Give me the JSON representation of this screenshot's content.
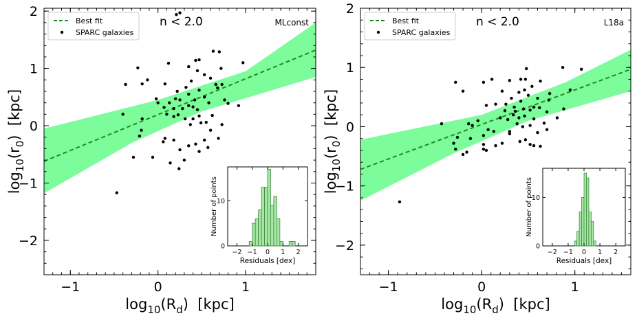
{
  "chart_data": [
    {
      "type": "scatter",
      "panel_label": "MLconst",
      "annotation": "n < 2.0",
      "xlabel": "log10(Rd)  [kpc]",
      "ylabel": "log10(r0)  [kpc]",
      "xlim": [
        -1.3,
        1.8
      ],
      "ylim": [
        -2.6,
        2.05
      ],
      "xticks": [
        -1,
        0,
        1
      ],
      "yticks": [
        -2,
        -1,
        0,
        1,
        2
      ],
      "legend": [
        "Best fit",
        "SPARC galaxies"
      ],
      "legend_position": "top-left",
      "fit": {
        "x0": -1.3,
        "y0": -0.62,
        "x1": 1.8,
        "y1": 1.32
      },
      "band_upper": [
        [
          -1.3,
          -0.05
        ],
        [
          0.0,
          0.45
        ],
        [
          1.0,
          0.95
        ],
        [
          1.8,
          1.8
        ]
      ],
      "band_lower": [
        [
          -1.3,
          -1.18
        ],
        [
          -0.3,
          -0.3
        ],
        [
          0.5,
          0.25
        ],
        [
          1.8,
          0.85
        ]
      ],
      "points": [
        [
          0.21,
          1.94
        ],
        [
          0.25,
          1.97
        ],
        [
          -0.37,
          0.72
        ],
        [
          -0.23,
          1.01
        ],
        [
          -0.18,
          0.73
        ],
        [
          0.12,
          1.09
        ],
        [
          0.35,
          1.03
        ],
        [
          0.43,
          1.14
        ],
        [
          0.47,
          1.15
        ],
        [
          0.45,
          0.96
        ],
        [
          0.53,
          0.89
        ],
        [
          0.6,
          0.83
        ],
        [
          0.38,
          0.78
        ],
        [
          0.63,
          1.3
        ],
        [
          0.7,
          1.29
        ],
        [
          0.72,
          1.0
        ],
        [
          0.97,
          1.1
        ],
        [
          0.66,
          0.72
        ],
        [
          0.73,
          0.72
        ],
        [
          0.68,
          0.66
        ],
        [
          0.08,
          0.73
        ],
        [
          -0.12,
          0.8
        ],
        [
          0.32,
          0.67
        ],
        [
          0.22,
          0.6
        ],
        [
          0.35,
          0.55
        ],
        [
          0.42,
          0.45
        ],
        [
          0.53,
          0.5
        ],
        [
          0.58,
          0.4
        ],
        [
          0.47,
          0.62
        ],
        [
          -0.02,
          0.47
        ],
        [
          0.0,
          0.4
        ],
        [
          0.2,
          0.47
        ],
        [
          0.25,
          0.45
        ],
        [
          0.13,
          0.4
        ],
        [
          0.07,
          0.32
        ],
        [
          0.18,
          0.3
        ],
        [
          0.28,
          0.3
        ],
        [
          0.35,
          0.35
        ],
        [
          0.4,
          0.33
        ],
        [
          0.45,
          0.28
        ],
        [
          0.18,
          0.16
        ],
        [
          0.23,
          0.19
        ],
        [
          0.31,
          0.12
        ],
        [
          0.4,
          0.12
        ],
        [
          0.47,
          0.17
        ],
        [
          0.37,
          0.02
        ],
        [
          0.49,
          0.05
        ],
        [
          0.55,
          0.06
        ],
        [
          0.62,
          0.18
        ],
        [
          0.76,
          0.45
        ],
        [
          0.8,
          0.39
        ],
        [
          0.92,
          0.35
        ],
        [
          -0.18,
          0.12
        ],
        [
          -0.19,
          -0.08
        ],
        [
          -0.21,
          -0.18
        ],
        [
          0.06,
          -0.28
        ],
        [
          0.18,
          -0.25
        ],
        [
          0.25,
          -0.42
        ],
        [
          0.35,
          -0.35
        ],
        [
          0.43,
          -0.32
        ],
        [
          0.47,
          -0.45
        ],
        [
          0.57,
          -0.38
        ],
        [
          0.3,
          -0.6
        ],
        [
          0.24,
          -0.75
        ],
        [
          0.14,
          -0.65
        ],
        [
          -0.06,
          -0.55
        ],
        [
          -0.28,
          -0.55
        ],
        [
          0.6,
          -0.08
        ],
        [
          0.73,
          0.02
        ],
        [
          0.69,
          -0.22
        ],
        [
          -0.4,
          0.2
        ],
        [
          -0.47,
          -1.17
        ],
        [
          0.1,
          0.2
        ],
        [
          0.08,
          -0.22
        ],
        [
          0.53,
          -0.25
        ]
      ],
      "inset": {
        "type": "histogram",
        "xlabel": "Residuals [dex]",
        "ylabel": "Number of points",
        "xlim": [
          -2.6,
          2.6
        ],
        "ylim": [
          0,
          17.5
        ],
        "xticks": [
          -2,
          -1,
          0,
          1,
          2
        ],
        "yticks": [
          0,
          10
        ],
        "bin_width": 0.2,
        "bins": [
          [
            -1.2,
            1
          ],
          [
            -1.0,
            5
          ],
          [
            -0.8,
            6
          ],
          [
            -0.6,
            8
          ],
          [
            -0.4,
            13
          ],
          [
            -0.2,
            13
          ],
          [
            0.0,
            17
          ],
          [
            0.2,
            9
          ],
          [
            0.4,
            11
          ],
          [
            0.6,
            6
          ],
          [
            0.8,
            1
          ],
          [
            1.4,
            1
          ],
          [
            1.6,
            1
          ]
        ]
      }
    },
    {
      "type": "scatter",
      "panel_label": "L18a",
      "annotation": "n < 2.0",
      "xlabel": "log10(Rd)  [kpc]",
      "ylabel": "log10(r0)  [kpc]",
      "xlim": [
        -1.3,
        1.6
      ],
      "ylim": [
        -2.5,
        2.0
      ],
      "xticks": [
        -1,
        0,
        1
      ],
      "yticks": [
        -2,
        -1,
        0,
        1,
        2
      ],
      "legend": [
        "Best fit",
        "SPARC galaxies"
      ],
      "legend_position": "top-left",
      "fit": {
        "x0": -1.3,
        "y0": -0.72,
        "x1": 1.6,
        "y1": 0.97
      },
      "band_upper": [
        [
          -1.3,
          -0.22
        ],
        [
          0.0,
          0.2
        ],
        [
          0.9,
          0.75
        ],
        [
          1.6,
          1.3
        ]
      ],
      "band_lower": [
        [
          -1.3,
          -1.25
        ],
        [
          -0.3,
          -0.45
        ],
        [
          0.5,
          0.1
        ],
        [
          1.6,
          0.6
        ]
      ],
      "points": [
        [
          1.07,
          0.97
        ],
        [
          0.48,
          0.98
        ],
        [
          0.87,
          1.0
        ],
        [
          0.11,
          0.8
        ],
        [
          0.3,
          0.78
        ],
        [
          0.42,
          0.8
        ],
        [
          0.47,
          0.8
        ],
        [
          -0.28,
          0.75
        ],
        [
          0.02,
          0.75
        ],
        [
          0.63,
          0.77
        ],
        [
          0.54,
          0.68
        ],
        [
          0.46,
          0.62
        ],
        [
          -0.2,
          0.6
        ],
        [
          0.22,
          0.6
        ],
        [
          0.4,
          0.58
        ],
        [
          0.5,
          0.53
        ],
        [
          0.73,
          0.56
        ],
        [
          0.95,
          0.62
        ],
        [
          0.32,
          0.48
        ],
        [
          0.42,
          0.43
        ],
        [
          0.6,
          0.48
        ],
        [
          0.72,
          0.45
        ],
        [
          0.05,
          0.36
        ],
        [
          0.15,
          0.38
        ],
        [
          0.26,
          0.38
        ],
        [
          0.35,
          0.33
        ],
        [
          0.45,
          0.3
        ],
        [
          0.52,
          0.28
        ],
        [
          0.56,
          0.33
        ],
        [
          0.62,
          0.32
        ],
        [
          0.7,
          0.25
        ],
        [
          0.88,
          0.3
        ],
        [
          0.25,
          0.27
        ],
        [
          0.36,
          0.26
        ],
        [
          0.2,
          0.15
        ],
        [
          0.28,
          0.12
        ],
        [
          0.4,
          0.15
        ],
        [
          0.46,
          0.18
        ],
        [
          0.56,
          0.13
        ],
        [
          0.38,
          0.05
        ],
        [
          0.44,
          0.0
        ],
        [
          0.52,
          0.02
        ],
        [
          0.67,
          0.06
        ],
        [
          0.81,
          0.15
        ],
        [
          0.3,
          -0.08
        ],
        [
          -0.04,
          0.1
        ],
        [
          -0.14,
          0.05
        ],
        [
          -0.1,
          0.02
        ],
        [
          -0.43,
          0.05
        ],
        [
          0.07,
          -0.05
        ],
        [
          0.13,
          -0.08
        ],
        [
          0.02,
          -0.15
        ],
        [
          -0.12,
          -0.2
        ],
        [
          -0.26,
          -0.18
        ],
        [
          -0.3,
          -0.28
        ],
        [
          0.02,
          -0.3
        ],
        [
          0.15,
          -0.32
        ],
        [
          0.22,
          -0.28
        ],
        [
          0.41,
          -0.25
        ],
        [
          0.47,
          -0.22
        ],
        [
          0.52,
          -0.3
        ],
        [
          0.56,
          -0.32
        ],
        [
          0.63,
          -0.33
        ],
        [
          0.02,
          -0.38
        ],
        [
          0.05,
          -0.4
        ],
        [
          -0.16,
          -0.43
        ],
        [
          -0.2,
          -0.47
        ],
        [
          -0.28,
          -0.38
        ],
        [
          -0.88,
          -1.27
        ],
        [
          0.3,
          -0.12
        ],
        [
          0.6,
          -0.1
        ],
        [
          0.7,
          -0.05
        ],
        [
          0.34,
          0.2
        ]
      ],
      "inset": {
        "type": "histogram",
        "xlabel": "Residuals [dex]",
        "ylabel": "Number of points",
        "xlim": [
          -2.6,
          2.6
        ],
        "ylim": [
          0,
          16
        ],
        "xticks": [
          -2,
          -1,
          0,
          1,
          2
        ],
        "yticks": [
          0,
          10
        ],
        "bin_width": 0.15,
        "bins": [
          [
            -0.6,
            1
          ],
          [
            -0.45,
            3
          ],
          [
            -0.3,
            7
          ],
          [
            -0.15,
            10
          ],
          [
            0.0,
            15
          ],
          [
            0.15,
            14
          ],
          [
            0.3,
            7
          ],
          [
            0.45,
            5
          ],
          [
            0.6,
            1
          ]
        ]
      }
    }
  ]
}
